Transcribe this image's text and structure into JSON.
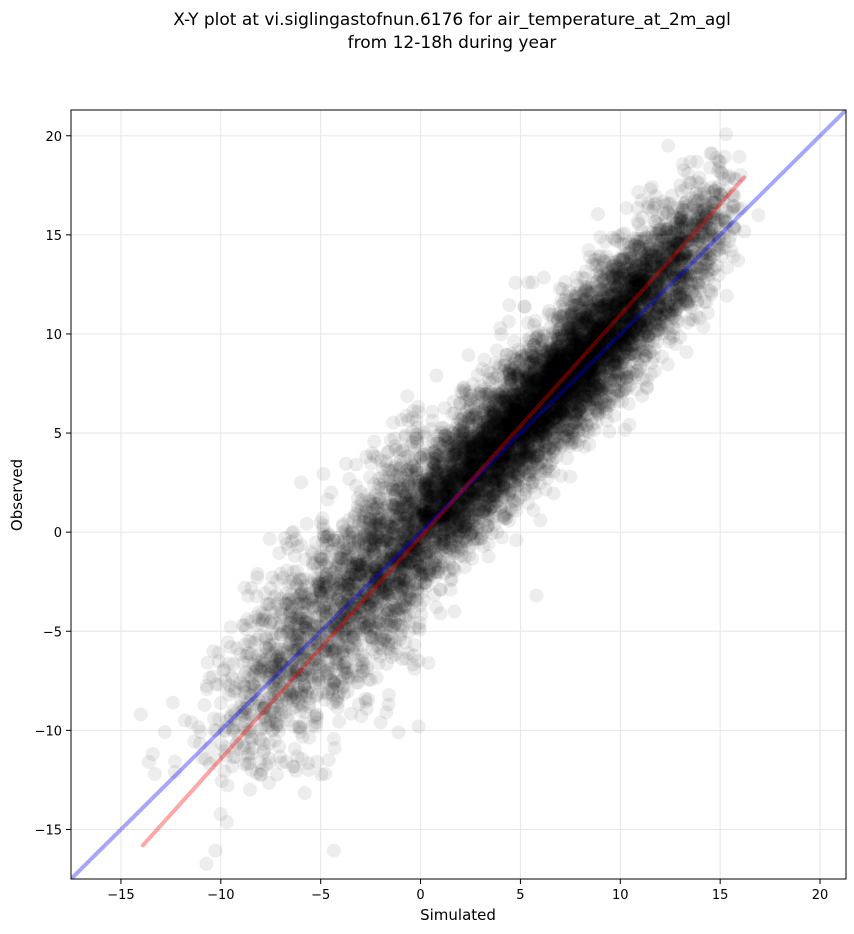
{
  "chart_data": {
    "type": "scatter",
    "title_lines": [
      "X-Y plot at vi.siglingastofnun.6176 for air_temperature_at_2m_agl",
      "from 12-18h during year"
    ],
    "xlabel": "Simulated",
    "ylabel": "Observed",
    "xlim": [
      -17.5,
      21.3
    ],
    "ylim": [
      -17.5,
      21.3
    ],
    "xticks": [
      -15,
      -10,
      -5,
      0,
      5,
      10,
      15,
      20
    ],
    "yticks": [
      -15,
      -10,
      -5,
      0,
      5,
      10,
      15,
      20
    ],
    "xtick_labels": [
      "−15",
      "−10",
      "−5",
      "0",
      "5",
      "10",
      "15",
      "20"
    ],
    "ytick_labels": [
      "−15",
      "−10",
      "−5",
      "0",
      "5",
      "10",
      "15",
      "20"
    ],
    "grid": true,
    "point_color": "#000000",
    "point_opacity": 0.07,
    "points": [
      [
        -14,
        -9.2
      ],
      [
        -13.6,
        -11.6
      ],
      [
        -13.4,
        -11.2
      ],
      [
        -13.3,
        -12.2
      ],
      [
        -12.8,
        -10.1
      ],
      [
        -12.4,
        -8.6
      ],
      [
        -12.3,
        -12.1
      ],
      [
        -11.8,
        -9.5
      ],
      [
        -10.4,
        -7.3
      ],
      [
        -9.5,
        -4.8
      ],
      [
        -9.5,
        -5.8
      ],
      [
        -8.8,
        -8.3
      ],
      [
        -8.8,
        -2.8
      ],
      [
        -8.6,
        -6.1
      ],
      [
        -8.2,
        -8.4
      ],
      [
        -7.5,
        -7.1
      ],
      [
        -7,
        -2.1
      ],
      [
        -6.8,
        -0.3
      ],
      [
        -6.3,
        -1.2
      ],
      [
        -5.9,
        -2.4
      ],
      [
        -5.2,
        -9.2
      ],
      [
        -5.4,
        -1.1
      ],
      [
        -4.6,
        -0.1
      ],
      [
        -4.6,
        -11.5
      ],
      [
        -4.3,
        -10.9
      ],
      [
        -3.9,
        0.3
      ],
      [
        -3.3,
        -0.5
      ],
      [
        -2.7,
        -8.9
      ],
      [
        -2,
        -9.6
      ],
      [
        -1.1,
        -10.1
      ],
      [
        -1.6,
        -8.7
      ],
      [
        -0.6,
        -6.1
      ],
      [
        -0.1,
        -9.8
      ],
      [
        0.4,
        -6.6
      ],
      [
        1,
        -4.1
      ],
      [
        1.7,
        -4
      ],
      [
        1.5,
        -2.9
      ],
      [
        0.8,
        7.9
      ],
      [
        2.3,
        -0.5
      ],
      [
        3.2,
        8.7
      ],
      [
        5.8,
        -3.2
      ],
      [
        4.8,
        -0.4
      ],
      [
        6,
        0.6
      ],
      [
        7.5,
        2.8
      ],
      [
        8.2,
        4.3
      ],
      [
        9.1,
        6.3
      ],
      [
        11,
        8.3
      ],
      [
        12.6,
        10.8
      ],
      [
        12.4,
        19.5
      ],
      [
        13.4,
        18.1
      ],
      [
        14.5,
        18.4
      ],
      [
        15.1,
        18.1
      ],
      [
        15.7,
        15.4
      ],
      [
        15.9,
        13.7
      ],
      [
        14.4,
        12.8
      ],
      [
        15.9,
        16.3
      ],
      [
        13,
        17.5
      ],
      [
        11.4,
        16.6
      ],
      [
        5.4,
        12.6
      ],
      [
        4,
        10.3
      ]
    ],
    "dense_cloud": {
      "count": 9000,
      "x_range": [
        -11,
        16
      ],
      "x_peak": 8,
      "slope": 1.03,
      "intercept": 0.4,
      "spread": 2.0
    },
    "lines": [
      {
        "color": "#0000ff",
        "opacity": 0.35,
        "x": [
          -17.5,
          21.3
        ],
        "y": [
          -17.5,
          21.3
        ]
      },
      {
        "color": "#ff0000",
        "opacity": 0.35,
        "x": [
          -13.9,
          16.2
        ],
        "y": [
          -15.8,
          17.9
        ]
      }
    ]
  }
}
